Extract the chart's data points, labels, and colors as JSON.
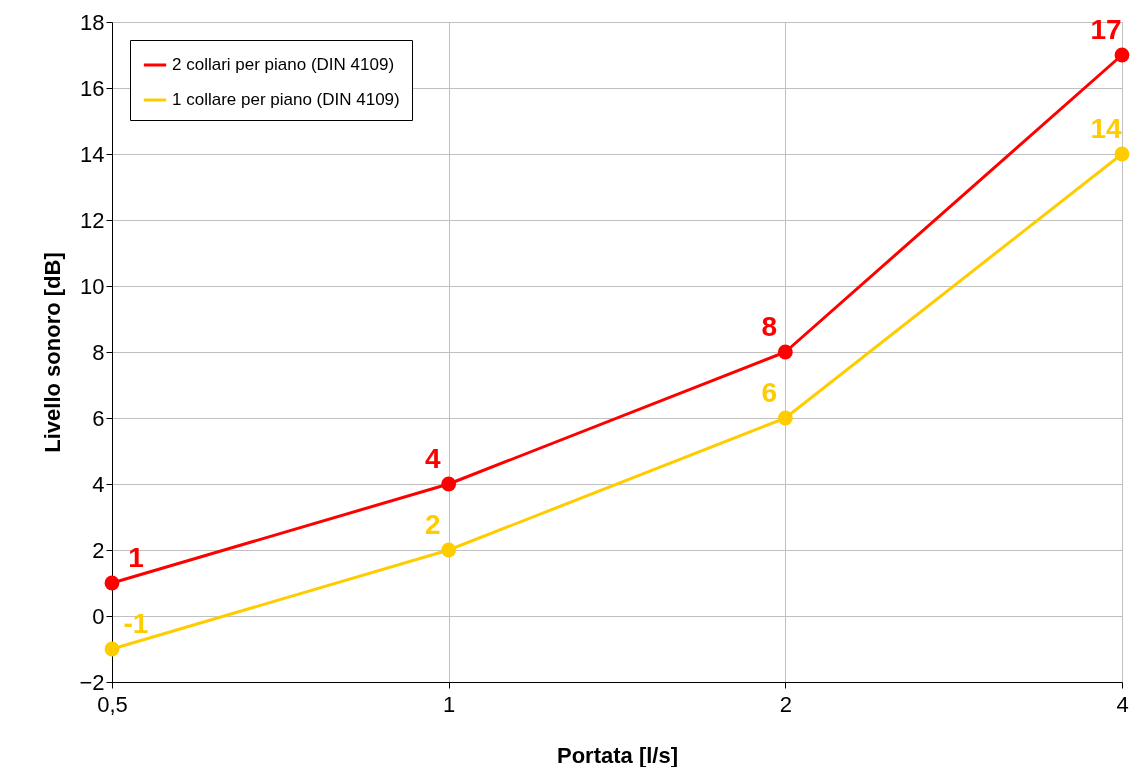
{
  "chart_data": {
    "type": "line",
    "xlabel": "Portata [l/s]",
    "ylabel": "Livello sonoro [dB]",
    "x": [
      0.5,
      1,
      2,
      4
    ],
    "log": "x",
    "xlim": [
      0.5,
      4
    ],
    "xticks": [
      {
        "value": 0.5,
        "label": "0,5"
      },
      1,
      2,
      4
    ],
    "ylim": [
      -2,
      18
    ],
    "yticks": [
      -2,
      0,
      2,
      4,
      6,
      8,
      10,
      12,
      14,
      16,
      18
    ],
    "grid": true,
    "legend": "top left",
    "marker": "circle",
    "line_style": "solid",
    "data_labels": true,
    "series": [
      {
        "name": "2 collari per piano (DIN 4109)",
        "color": "#ff0000",
        "values": [
          1,
          4,
          8,
          17
        ]
      },
      {
        "name": "1 collare per piano (DIN 4109)",
        "color": "#ffcc00",
        "values": [
          -1,
          2,
          6,
          14
        ]
      }
    ]
  }
}
